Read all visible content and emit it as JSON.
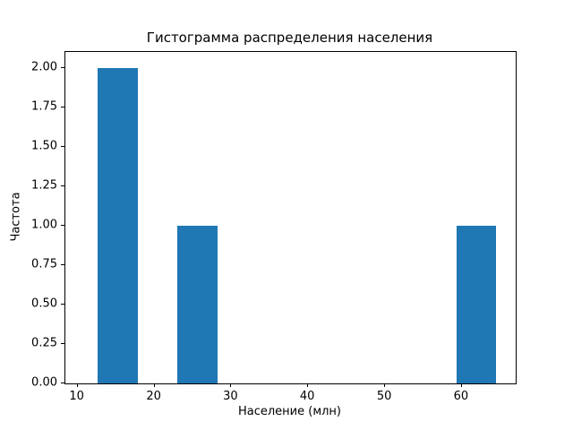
{
  "chart_data": {
    "type": "bar",
    "subtype": "histogram",
    "title": "Гистограмма распределения населения",
    "xlabel": "Население (млн)",
    "ylabel": "Частота",
    "bar_color": "#1f77b4",
    "xlim": [
      8.4,
      67.0
    ],
    "ylim": [
      0,
      2.1
    ],
    "xticks": [
      10,
      20,
      30,
      40,
      50,
      60
    ],
    "yticks": [
      "0.00",
      "0.25",
      "0.50",
      "0.75",
      "1.00",
      "1.25",
      "1.50",
      "1.75",
      "2.00"
    ],
    "grid": false,
    "legend": "none",
    "bins": [
      {
        "x0": 12.6,
        "x1": 17.8,
        "count": 2
      },
      {
        "x0": 23.0,
        "x1": 28.2,
        "count": 1
      },
      {
        "x0": 59.3,
        "x1": 64.5,
        "count": 1
      }
    ]
  }
}
